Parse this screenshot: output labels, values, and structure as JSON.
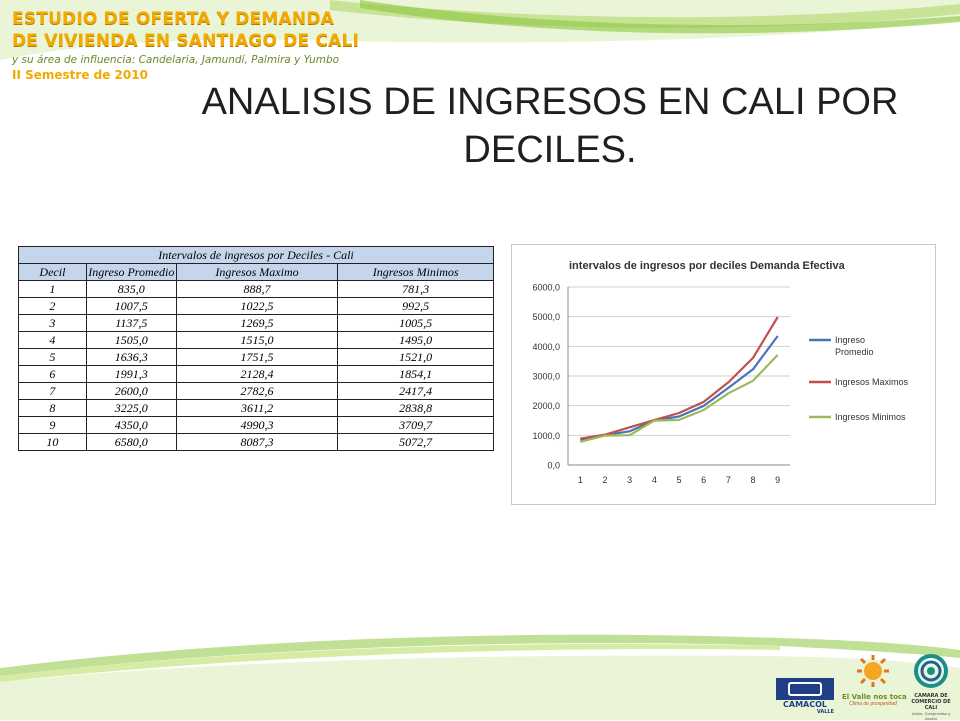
{
  "brand": {
    "line1": "ESTUDIO DE OFERTA Y DEMANDA",
    "line2": "DE VIVIENDA EN SANTIAGO DE CALI",
    "line3": "y su área de influencia: Candelaria, Jamundí, Palmira y Yumbo",
    "line4": "II Semestre de 2010"
  },
  "slide_title": {
    "line1": "ANALISIS DE INGRESOS EN CALI POR",
    "line2": "DECILES."
  },
  "table": {
    "title": "Intervalos de ingresos por Deciles - Cali",
    "headers": [
      "Decil",
      "Ingreso Promedio",
      "Ingresos Maximo",
      "Ingresos Minimos"
    ],
    "rows": [
      [
        "1",
        "835,0",
        "888,7",
        "781,3"
      ],
      [
        "2",
        "1007,5",
        "1022,5",
        "992,5"
      ],
      [
        "3",
        "1137,5",
        "1269,5",
        "1005,5"
      ],
      [
        "4",
        "1505,0",
        "1515,0",
        "1495,0"
      ],
      [
        "5",
        "1636,3",
        "1751,5",
        "1521,0"
      ],
      [
        "6",
        "1991,3",
        "2128,4",
        "1854,1"
      ],
      [
        "7",
        "2600,0",
        "2782,6",
        "2417,4"
      ],
      [
        "8",
        "3225,0",
        "3611,2",
        "2838,8"
      ],
      [
        "9",
        "4350,0",
        "4990,3",
        "3709,7"
      ],
      [
        "10",
        "6580,0",
        "8087,3",
        "5072,7"
      ]
    ]
  },
  "chart_data": {
    "type": "line",
    "title": "intervalos de ingresos por deciles Demanda Efectiva",
    "categories": [
      "1",
      "2",
      "3",
      "4",
      "5",
      "6",
      "7",
      "8",
      "9"
    ],
    "y_ticks": [
      "0,0",
      "1000,0",
      "2000,0",
      "3000,0",
      "4000,0",
      "5000,0",
      "6000,0"
    ],
    "ylim": [
      0,
      6000
    ],
    "grid": true,
    "legend_position": "right",
    "series": [
      {
        "name": "Ingreso Promedio",
        "color": "#4a72b8",
        "values": [
          835.0,
          1007.5,
          1137.5,
          1505.0,
          1636.3,
          1991.3,
          2600.0,
          3225.0,
          4350.0
        ]
      },
      {
        "name": "Ingresos Maximos",
        "color": "#c0504d",
        "values": [
          888.7,
          1022.5,
          1269.5,
          1515.0,
          1751.5,
          2128.4,
          2782.6,
          3611.2,
          4990.3
        ]
      },
      {
        "name": "Ingresos Minimos",
        "color": "#9bbb59",
        "values": [
          781.3,
          992.5,
          1005.5,
          1495.0,
          1521.0,
          1854.1,
          2417.4,
          2838.8,
          3709.7
        ]
      }
    ]
  },
  "logos": {
    "camacol": "CAMACOL",
    "camacol_sub": "VALLE",
    "valle": "El Valle nos toca",
    "valle_sub": "Clima de prosperidad",
    "camara": "CAMARA DE COMERCIO DE CALI",
    "camara_sub": "Unión, Compromiso y Acción"
  },
  "colors": {
    "band_green": "#8cc63f",
    "band_yellow": "#f2a900",
    "table_header": "#c5d6ec"
  }
}
